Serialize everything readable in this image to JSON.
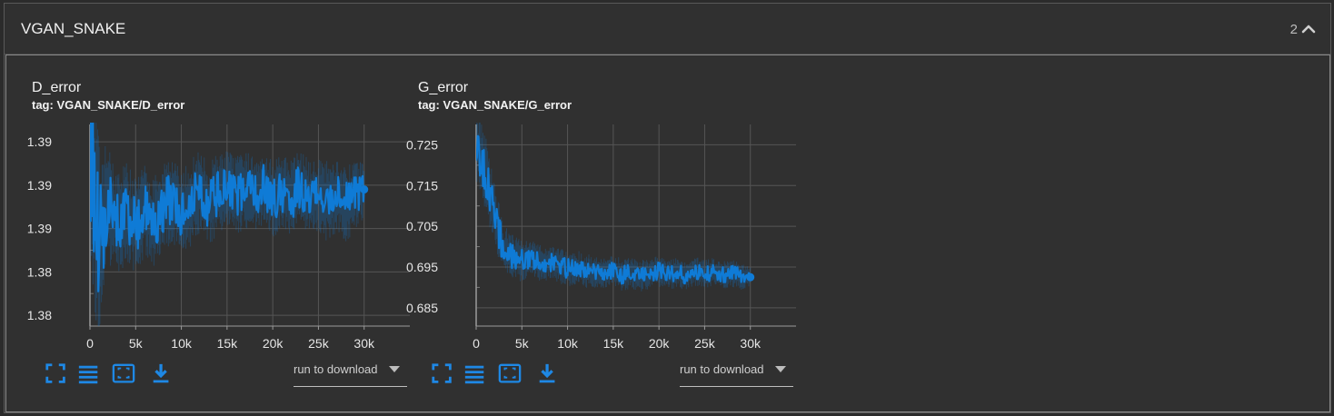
{
  "section": {
    "title": "VGAN_SNAKE",
    "count": "2",
    "collapse_icon": "chevron-up-icon"
  },
  "accent": "#1e88e5",
  "line_color": "#0f7bd6",
  "cards": [
    {
      "title": "D_error",
      "tag": "tag: VGAN_SNAKE/D_error",
      "download_label": "run to download",
      "chart_data": {
        "type": "line",
        "title": "D_error",
        "x_ticks": [
          0,
          5000,
          10000,
          15000,
          20000,
          25000,
          30000
        ],
        "x_tick_labels": [
          "0",
          "5k",
          "10k",
          "15k",
          "20k",
          "25k",
          "30k"
        ],
        "xlim": [
          0,
          35000
        ],
        "y_ticks": [
          1.383,
          1.385,
          1.387,
          1.389,
          1.391
        ],
        "y_tick_labels": [
          "1.38",
          "1.38",
          "1.39",
          "1.39",
          "1.39"
        ],
        "ylim": [
          1.3825,
          1.3918
        ],
        "series": [
          {
            "x": [
              0,
              1000,
              2000,
              3000,
              4000,
              5000,
              6000,
              7000,
              8000,
              9000,
              10000,
              11000,
              12000,
              13000,
              14000,
              15000,
              16000,
              17000,
              18000,
              19000,
              20000,
              21000,
              22000,
              23000,
              24000,
              25000,
              26000,
              27000,
              28000,
              29000,
              30000
            ],
            "values": [
              1.3905,
              1.3862,
              1.388,
              1.3874,
              1.3876,
              1.3871,
              1.3878,
              1.3873,
              1.388,
              1.3884,
              1.3876,
              1.3882,
              1.3887,
              1.3881,
              1.3886,
              1.3889,
              1.3884,
              1.3888,
              1.3885,
              1.389,
              1.3883,
              1.3887,
              1.3884,
              1.3889,
              1.3883,
              1.3887,
              1.3882,
              1.3886,
              1.3881,
              1.3885,
              1.3888
            ],
            "spread": [
              0.0035,
              0.003,
              0.0018,
              0.0015,
              0.0016,
              0.0014,
              0.0014,
              0.0013,
              0.0014,
              0.0013,
              0.0012,
              0.0013,
              0.0012,
              0.0012,
              0.0012,
              0.0011,
              0.0012,
              0.0011,
              0.0012,
              0.0011,
              0.0012,
              0.0011,
              0.0011,
              0.0012,
              0.0011,
              0.0011,
              0.0012,
              0.0011,
              0.0011,
              0.001,
              0.0008
            ]
          }
        ],
        "grid": true
      }
    },
    {
      "title": "G_error",
      "tag": "tag: VGAN_SNAKE/G_error",
      "download_label": "run to download",
      "chart_data": {
        "type": "line",
        "title": "G_error",
        "x_ticks": [
          0,
          5000,
          10000,
          15000,
          20000,
          25000,
          30000
        ],
        "x_tick_labels": [
          "0",
          "5k",
          "10k",
          "15k",
          "20k",
          "25k",
          "30k"
        ],
        "xlim": [
          0,
          35000
        ],
        "y_ticks": [
          0.685,
          0.695,
          0.705,
          0.715,
          0.725
        ],
        "y_tick_labels": [
          "0.685",
          "0.695",
          "0.705",
          "0.715",
          "0.725"
        ],
        "ylim": [
          0.6805,
          0.73
        ],
        "series": [
          {
            "x": [
              0,
              1000,
              2000,
              3000,
              4000,
              5000,
              6000,
              7000,
              8000,
              9000,
              10000,
              11000,
              12000,
              13000,
              14000,
              15000,
              16000,
              17000,
              18000,
              19000,
              20000,
              21000,
              22000,
              23000,
              24000,
              25000,
              26000,
              27000,
              28000,
              29000,
              30000
            ],
            "values": [
              0.726,
              0.718,
              0.708,
              0.699,
              0.6975,
              0.6965,
              0.697,
              0.6958,
              0.696,
              0.6955,
              0.6945,
              0.695,
              0.694,
              0.6938,
              0.6935,
              0.6942,
              0.693,
              0.6935,
              0.6928,
              0.6934,
              0.694,
              0.693,
              0.6936,
              0.6928,
              0.694,
              0.6932,
              0.6938,
              0.693,
              0.6935,
              0.6928,
              0.6925
            ],
            "spread": [
              0.006,
              0.006,
              0.005,
              0.004,
              0.0035,
              0.0032,
              0.003,
              0.003,
              0.0028,
              0.0028,
              0.0027,
              0.0027,
              0.0026,
              0.0026,
              0.0025,
              0.0025,
              0.0025,
              0.0024,
              0.0024,
              0.0024,
              0.0024,
              0.0024,
              0.0023,
              0.0023,
              0.0023,
              0.0022,
              0.0022,
              0.0022,
              0.0021,
              0.0021,
              0.0015
            ]
          }
        ],
        "grid": true
      }
    }
  ]
}
